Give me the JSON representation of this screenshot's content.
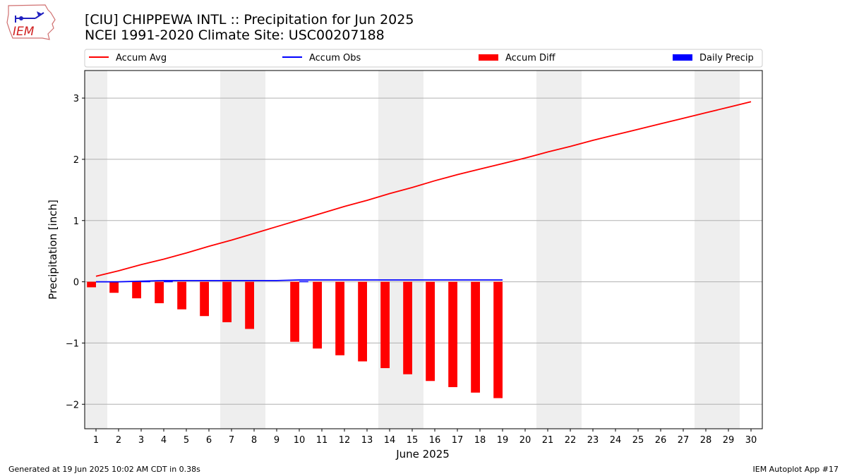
{
  "header": {
    "logo_text": "IEM",
    "title_line1": "[CIU] CHIPPEWA INTL :: Precipitation for Jun 2025",
    "title_line2": "NCEI 1991-2020 Climate Site: USC00207188"
  },
  "footer": {
    "left": "Generated at 19 Jun 2025 10:02 AM CDT in 0.38s",
    "right": "IEM Autoplot App #17"
  },
  "colors": {
    "avg": "#ff0000",
    "obs": "#0000ff",
    "diff": "#ff0000",
    "daily": "#0000ff",
    "weekend_band": "#eeeeee",
    "grid": "#b0b0b0"
  },
  "chart_data": {
    "type": "bar",
    "xlabel": "June 2025",
    "ylabel": "Precipitation [inch]",
    "xlim": [
      0.5,
      30.5
    ],
    "ylim": [
      -2.4,
      3.45
    ],
    "x_ticks": [
      1,
      2,
      3,
      4,
      5,
      6,
      7,
      8,
      9,
      10,
      11,
      12,
      13,
      14,
      15,
      16,
      17,
      18,
      19,
      20,
      21,
      22,
      23,
      24,
      25,
      26,
      27,
      28,
      29,
      30
    ],
    "y_ticks": [
      -2,
      -1,
      0,
      1,
      2,
      3
    ],
    "y_tick_labels": [
      "−2",
      "−1",
      "0",
      "1",
      "2",
      "3"
    ],
    "grid": "horizontal",
    "legend_position": "top, above plot",
    "weekend_bands": [
      [
        0.5,
        1.5
      ],
      [
        6.5,
        8.5
      ],
      [
        13.5,
        15.5
      ],
      [
        20.5,
        22.5
      ],
      [
        27.5,
        29.5
      ]
    ],
    "legend": [
      {
        "label": "Accum Avg",
        "kind": "line",
        "color": "#ff0000"
      },
      {
        "label": "Accum Obs",
        "kind": "line",
        "color": "#0000ff"
      },
      {
        "label": "Accum Diff",
        "kind": "bar",
        "color": "#ff0000"
      },
      {
        "label": "Daily Precip",
        "kind": "bar",
        "color": "#0000ff"
      }
    ],
    "series": [
      {
        "name": "Accum Avg",
        "type": "line",
        "x": [
          1,
          2,
          3,
          4,
          5,
          6,
          7,
          8,
          9,
          10,
          11,
          12,
          13,
          14,
          15,
          16,
          17,
          18,
          19,
          20,
          21,
          22,
          23,
          24,
          25,
          26,
          27,
          28,
          29,
          30
        ],
        "values": [
          0.09,
          0.18,
          0.28,
          0.37,
          0.47,
          0.58,
          0.68,
          0.79,
          0.9,
          1.01,
          1.12,
          1.23,
          1.33,
          1.44,
          1.54,
          1.65,
          1.75,
          1.84,
          1.93,
          2.02,
          2.12,
          2.21,
          2.31,
          2.4,
          2.49,
          2.58,
          2.67,
          2.76,
          2.85,
          2.94
        ]
      },
      {
        "name": "Accum Obs",
        "type": "line",
        "x": [
          1,
          2,
          3,
          4,
          5,
          6,
          7,
          8,
          9,
          10,
          11,
          12,
          13,
          14,
          15,
          16,
          17,
          18,
          19
        ],
        "values": [
          0.0,
          0.0,
          0.01,
          0.02,
          0.02,
          0.02,
          0.02,
          0.02,
          0.02,
          0.03,
          0.03,
          0.03,
          0.03,
          0.03,
          0.03,
          0.03,
          0.03,
          0.03,
          0.03
        ]
      },
      {
        "name": "Accum Diff",
        "type": "bar",
        "x": [
          1,
          2,
          3,
          4,
          5,
          6,
          7,
          8,
          10,
          11,
          12,
          13,
          14,
          15,
          16,
          17,
          18,
          19
        ],
        "values": [
          -0.09,
          -0.18,
          -0.27,
          -0.35,
          -0.45,
          -0.56,
          -0.66,
          -0.77,
          -0.98,
          -1.09,
          -1.2,
          -1.3,
          -1.41,
          -1.51,
          -1.62,
          -1.72,
          -1.81,
          -1.9
        ]
      },
      {
        "name": "Daily Precip",
        "type": "bar",
        "x": [
          3,
          4,
          10
        ],
        "values": [
          0.01,
          0.01,
          0.01
        ]
      }
    ]
  }
}
